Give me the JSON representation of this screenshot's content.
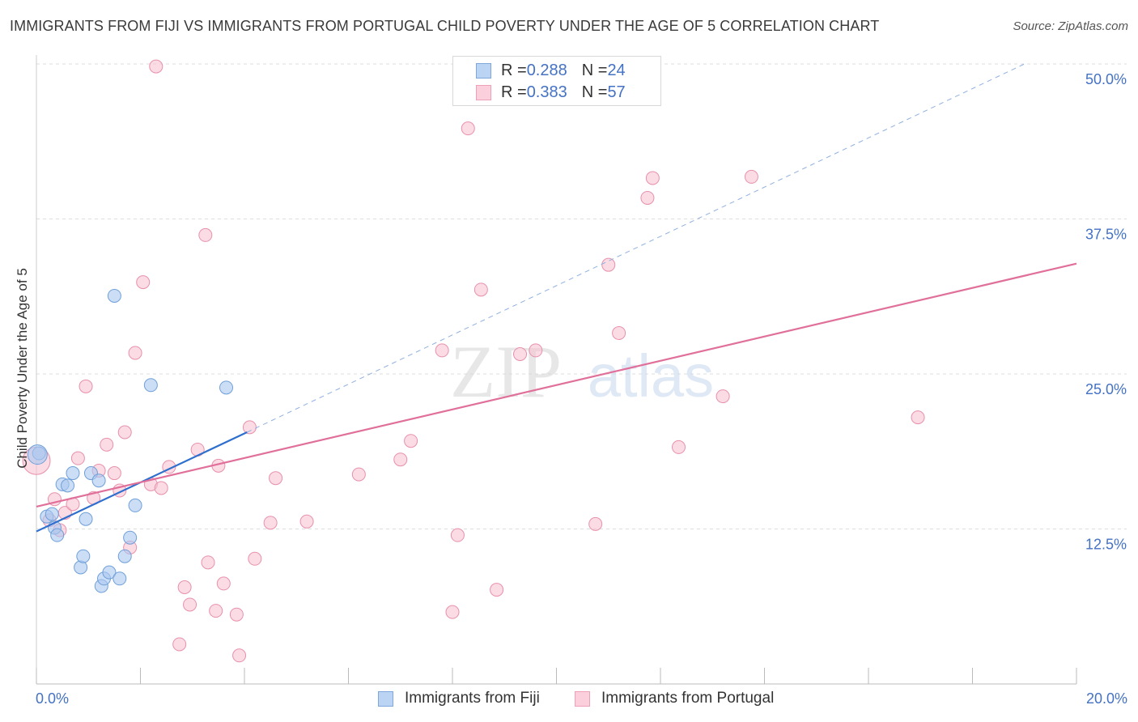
{
  "header": {
    "title": "IMMIGRANTS FROM FIJI VS IMMIGRANTS FROM PORTUGAL CHILD POVERTY UNDER THE AGE OF 5 CORRELATION CHART",
    "source": "Source: ZipAtlas.com"
  },
  "watermark": {
    "zip": "ZIP",
    "atlas": "atlas"
  },
  "legend": {
    "fiji": {
      "r_label": "R = ",
      "r_value": "0.288",
      "n_label": "N = ",
      "n_value": "24"
    },
    "portugal": {
      "r_label": "R = ",
      "r_value": "0.383",
      "n_label": "N = ",
      "n_value": "57"
    }
  },
  "colors": {
    "fiji_fill": "#aac8f0",
    "fiji_stroke": "#6f9fd8",
    "fiji_line": "#2e6fce",
    "portugal_fill": "#f8c0d0",
    "portugal_stroke": "#e890ac",
    "portugal_line": "#e0709a",
    "grid": "#dddddd",
    "axis_text": "#4472c4"
  },
  "chart_data": {
    "type": "scatter",
    "title": "IMMIGRANTS FROM FIJI VS IMMIGRANTS FROM PORTUGAL CHILD POVERTY UNDER THE AGE OF 5 CORRELATION CHART",
    "xlabel": "",
    "ylabel": "Child Poverty Under the Age of 5",
    "xlim": [
      0,
      20
    ],
    "ylim": [
      0,
      50
    ],
    "x_tick_labels": [
      "0.0%",
      "20.0%"
    ],
    "y_ticks": [
      12.5,
      25.0,
      37.5,
      50.0
    ],
    "y_tick_labels": [
      "12.5%",
      "25.0%",
      "37.5%",
      "50.0%"
    ],
    "legend_position": "top-center",
    "series": [
      {
        "name": "Immigrants from Fiji",
        "points": [
          [
            0.05,
            18.6
          ],
          [
            0.2,
            13.5
          ],
          [
            0.3,
            13.7
          ],
          [
            0.35,
            12.6
          ],
          [
            0.4,
            12.0
          ],
          [
            0.5,
            16.1
          ],
          [
            0.6,
            16.0
          ],
          [
            0.7,
            17.0
          ],
          [
            0.85,
            9.4
          ],
          [
            0.9,
            10.3
          ],
          [
            0.95,
            13.3
          ],
          [
            1.05,
            17.0
          ],
          [
            1.2,
            16.4
          ],
          [
            1.25,
            7.9
          ],
          [
            1.3,
            8.5
          ],
          [
            1.4,
            9.0
          ],
          [
            1.5,
            31.3
          ],
          [
            1.6,
            8.5
          ],
          [
            1.7,
            10.3
          ],
          [
            1.8,
            11.8
          ],
          [
            1.9,
            14.4
          ],
          [
            2.2,
            24.1
          ],
          [
            3.65,
            23.9
          ],
          [
            0.02,
            18.5
          ]
        ],
        "trend": {
          "x": [
            0,
            4.05
          ],
          "y": [
            12.3,
            20.3
          ],
          "dashed_extension_to": [
            19.0,
            50.0
          ]
        }
      },
      {
        "name": "Immigrants from Portugal",
        "points": [
          [
            0.0,
            18.0
          ],
          [
            0.25,
            13.2
          ],
          [
            0.35,
            14.9
          ],
          [
            0.45,
            12.4
          ],
          [
            0.55,
            13.8
          ],
          [
            0.7,
            14.5
          ],
          [
            0.8,
            18.2
          ],
          [
            0.95,
            24.0
          ],
          [
            1.1,
            15.0
          ],
          [
            1.2,
            17.2
          ],
          [
            1.35,
            19.3
          ],
          [
            1.5,
            17.0
          ],
          [
            1.6,
            15.6
          ],
          [
            1.7,
            20.3
          ],
          [
            1.8,
            11.0
          ],
          [
            1.9,
            26.7
          ],
          [
            2.05,
            32.4
          ],
          [
            2.2,
            16.1
          ],
          [
            2.4,
            15.8
          ],
          [
            2.55,
            17.5
          ],
          [
            2.75,
            3.2
          ],
          [
            2.85,
            7.8
          ],
          [
            2.95,
            6.4
          ],
          [
            3.1,
            18.9
          ],
          [
            3.25,
            36.2
          ],
          [
            3.3,
            9.8
          ],
          [
            3.45,
            5.9
          ],
          [
            3.5,
            17.6
          ],
          [
            3.6,
            8.1
          ],
          [
            3.85,
            5.6
          ],
          [
            3.9,
            2.3
          ],
          [
            4.1,
            20.7
          ],
          [
            4.2,
            10.1
          ],
          [
            4.5,
            13.0
          ],
          [
            4.6,
            16.6
          ],
          [
            5.2,
            13.1
          ],
          [
            6.2,
            16.9
          ],
          [
            7.0,
            18.1
          ],
          [
            7.2,
            19.6
          ],
          [
            7.8,
            26.9
          ],
          [
            8.0,
            5.8
          ],
          [
            8.1,
            12.0
          ],
          [
            8.3,
            44.8
          ],
          [
            8.55,
            31.8
          ],
          [
            8.85,
            7.6
          ],
          [
            9.3,
            26.6
          ],
          [
            9.6,
            26.9
          ],
          [
            10.75,
            12.9
          ],
          [
            11.0,
            33.8
          ],
          [
            11.2,
            28.3
          ],
          [
            11.75,
            39.2
          ],
          [
            11.85,
            40.8
          ],
          [
            12.35,
            19.1
          ],
          [
            13.2,
            23.2
          ],
          [
            13.75,
            40.9
          ],
          [
            16.95,
            21.5
          ],
          [
            2.3,
            49.8
          ]
        ],
        "trend": {
          "x": [
            0,
            20
          ],
          "y": [
            14.3,
            33.9
          ]
        }
      }
    ]
  },
  "bottom_legend": {
    "fiji_label": "Immigrants from Fiji",
    "portugal_label": "Immigrants from Portugal"
  }
}
